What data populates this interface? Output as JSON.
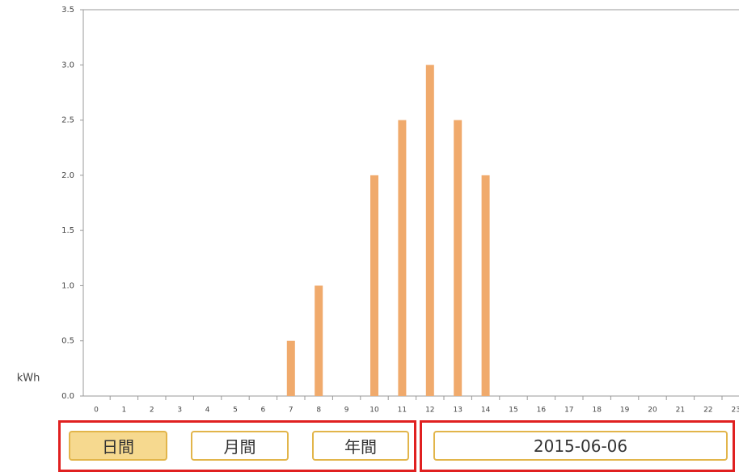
{
  "chart_data": {
    "type": "bar",
    "y_label": "kWh",
    "categories": [
      "0",
      "1",
      "2",
      "3",
      "4",
      "5",
      "6",
      "7",
      "8",
      "9",
      "10",
      "11",
      "12",
      "13",
      "14",
      "15",
      "16",
      "17",
      "18",
      "19",
      "20",
      "21",
      "22",
      "23"
    ],
    "values": [
      0,
      0,
      0,
      0,
      0,
      0,
      0,
      0.5,
      1,
      0,
      2,
      2.5,
      3,
      2.5,
      2,
      0,
      0,
      0,
      0,
      0,
      0,
      0,
      0,
      0
    ],
    "color": "#f0aa6c",
    "ylim": [
      0,
      3.5
    ],
    "yticks": [
      {
        "value": 0,
        "label": "0.0"
      },
      {
        "value": 0.5,
        "label": "0.5"
      },
      {
        "value": 1,
        "label": "1.0"
      },
      {
        "value": 1.5,
        "label": "1.5"
      },
      {
        "value": 2,
        "label": "2.0"
      },
      {
        "value": 2.5,
        "label": "2.5"
      },
      {
        "value": 3,
        "label": "3.0"
      },
      {
        "value": 3.5,
        "label": "3.5"
      }
    ],
    "grid": false
  },
  "controls": {
    "buttons": [
      "日間",
      "月間",
      "年間"
    ],
    "date": "2015-06-06"
  }
}
